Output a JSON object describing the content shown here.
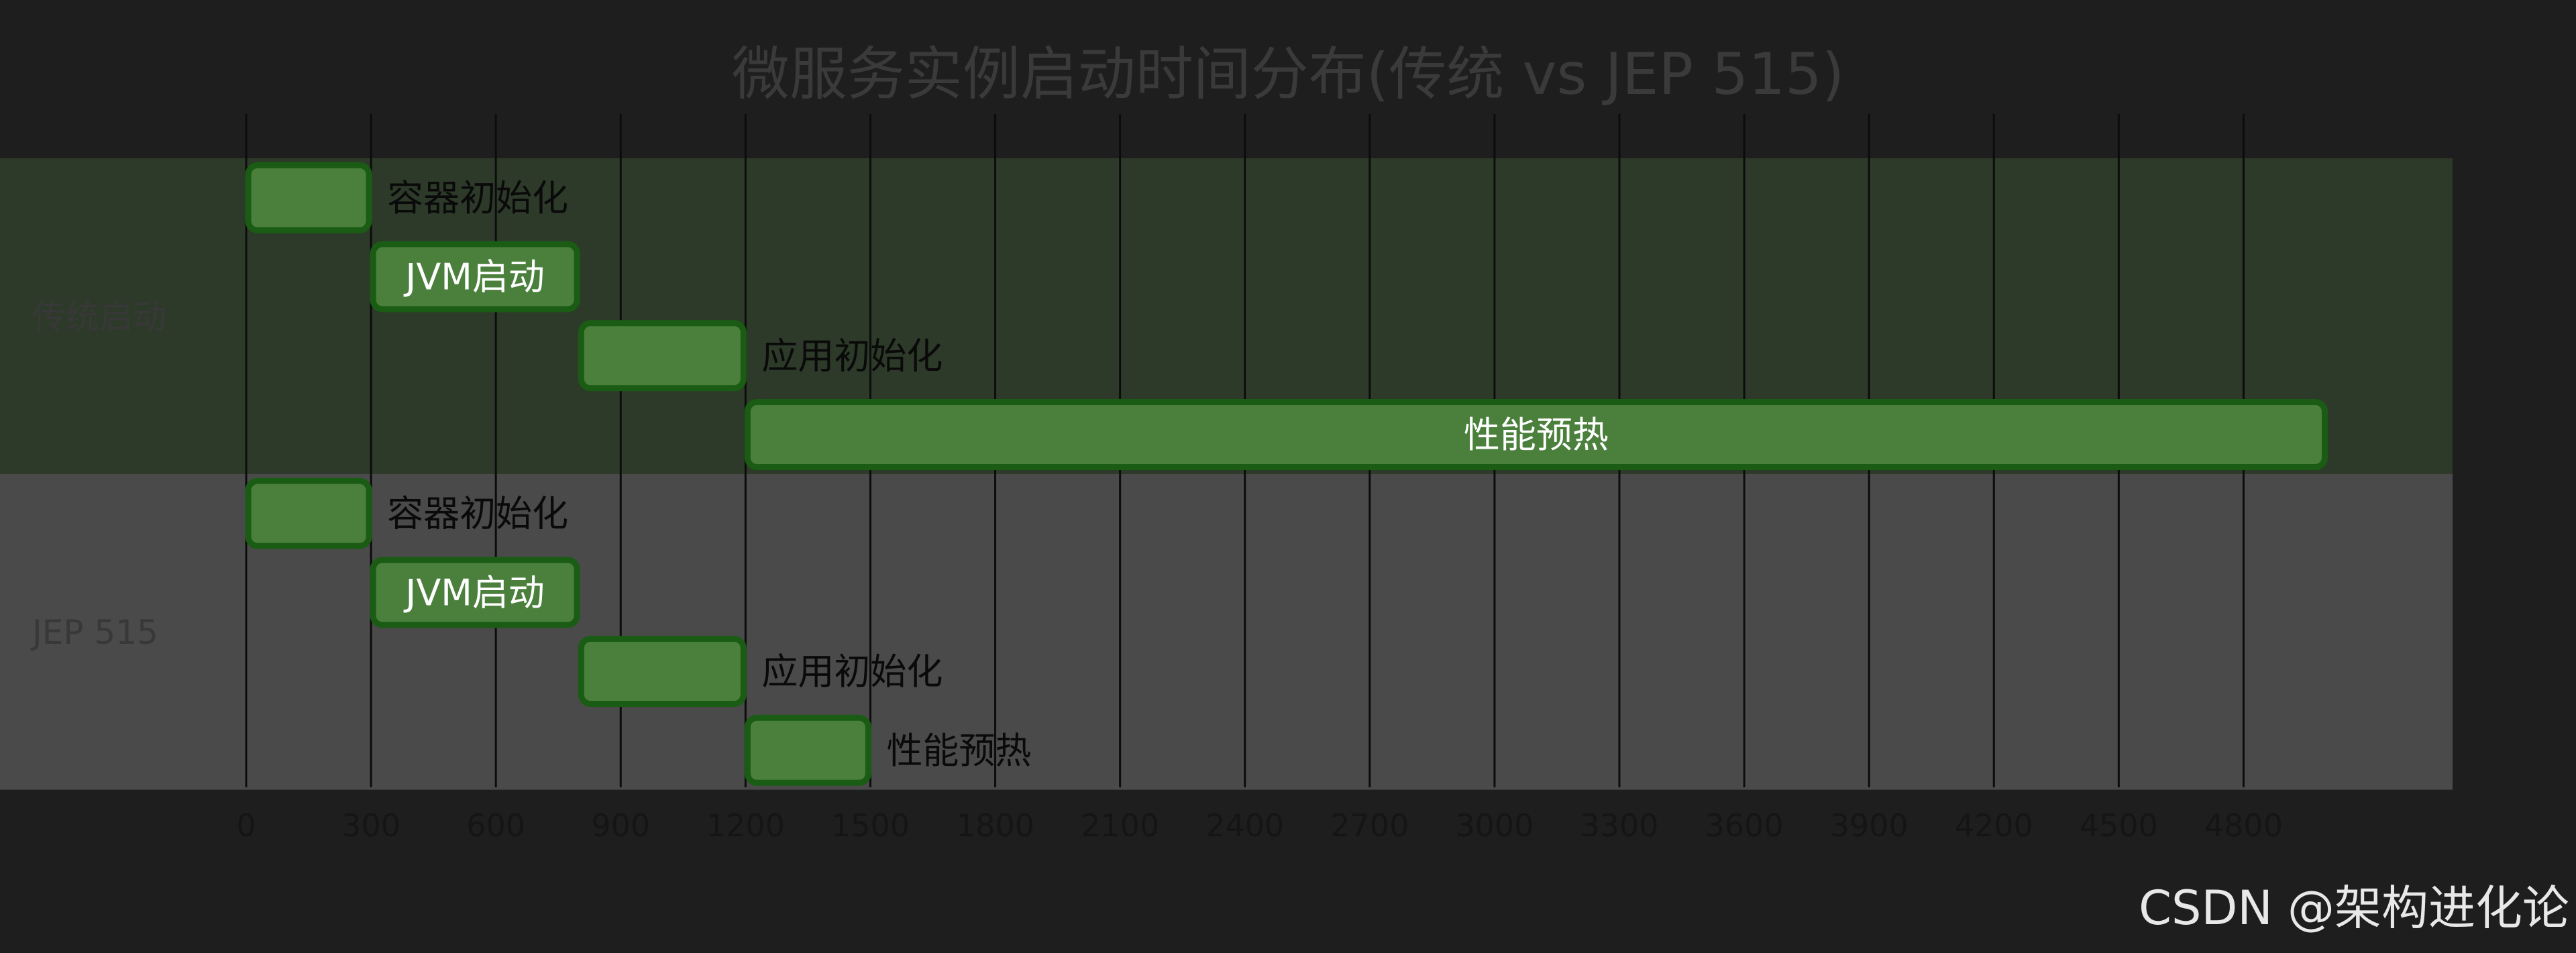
{
  "chart_data": {
    "type": "gantt",
    "title": "微服务实例启动时间分布(传统 vs JEP 515)",
    "xlim": [
      0,
      5300
    ],
    "x_ticks": [
      0,
      300,
      600,
      900,
      1200,
      1500,
      1800,
      2100,
      2400,
      2700,
      3000,
      3300,
      3600,
      3900,
      4200,
      4500,
      4800
    ],
    "grid": true,
    "groups": [
      {
        "name": "传统启动",
        "background": "#2d3a29",
        "tasks": [
          {
            "label": "容器初始化",
            "start": 0,
            "end": 300
          },
          {
            "label": "JVM启动",
            "start": 300,
            "end": 800
          },
          {
            "label": "应用初始化",
            "start": 800,
            "end": 1200
          },
          {
            "label": "性能预热",
            "start": 1200,
            "end": 5000
          }
        ]
      },
      {
        "name": "JEP 515",
        "background": "#4a4a4a",
        "tasks": [
          {
            "label": "容器初始化",
            "start": 0,
            "end": 300
          },
          {
            "label": "JVM启动",
            "start": 300,
            "end": 800
          },
          {
            "label": "应用初始化",
            "start": 800,
            "end": 1200
          },
          {
            "label": "性能预热",
            "start": 1200,
            "end": 1500
          }
        ]
      }
    ],
    "colors": {
      "bar_fill": "#4a7f3c",
      "bar_stroke": "#1a5c14",
      "grid": "#0c0c0c",
      "page": "#1e1e1e"
    }
  },
  "watermark": "CSDN @架构进化论"
}
